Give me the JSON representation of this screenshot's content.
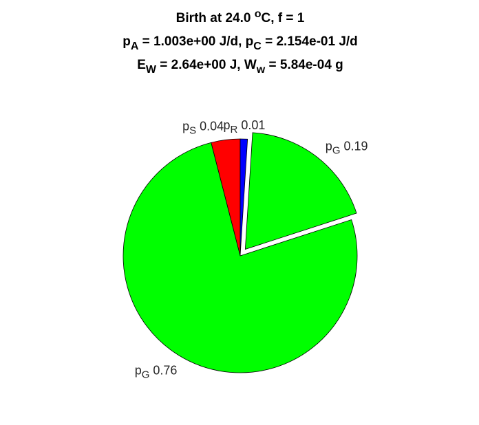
{
  "chart_data": {
    "type": "pie",
    "title_lines": [
      [
        {
          "text": "Birth at 24.0 "
        },
        {
          "text": "o",
          "sup": true
        },
        {
          "text": "C, f = 1"
        }
      ],
      [
        {
          "text": "p"
        },
        {
          "text": "A",
          "sub": true
        },
        {
          "text": " = 1.003e+00 J/d, p"
        },
        {
          "text": "C",
          "sub": true
        },
        {
          "text": " = 2.154e-01 J/d"
        }
      ],
      [
        {
          "text": "E"
        },
        {
          "text": "W",
          "sub": true
        },
        {
          "text": " = 2.64e+00 J, W"
        },
        {
          "text": "w",
          "sub": true
        },
        {
          "text": " = 5.84e-04 g"
        }
      ]
    ],
    "slices": [
      {
        "name": "p",
        "sub": "S",
        "value": 0.04,
        "color": "#ff0000",
        "explode": false
      },
      {
        "name": "p",
        "sub": "G",
        "value": 0.76,
        "color": "#00ff00",
        "explode": false
      },
      {
        "name": "p",
        "sub": "G",
        "value": 0.19,
        "color": "#00ff00",
        "explode": true
      },
      {
        "name": "p",
        "sub": "R",
        "value": 0.01,
        "color": "#0000ff",
        "explode": false
      }
    ]
  }
}
